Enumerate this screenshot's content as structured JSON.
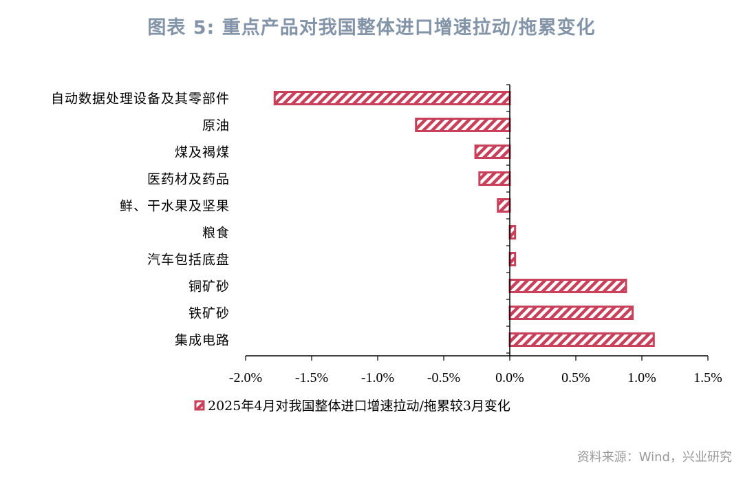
{
  "title": "图表 5:    重点产品对我国整体进口增速拉动/拖累变化",
  "source": "资料来源：Wind，兴业研究",
  "colors": {
    "bar": "#c8405a",
    "axis": "#000000",
    "title": "#8394a8",
    "source": "#9a9a9a"
  },
  "chart_data": {
    "type": "bar",
    "orientation": "horizontal",
    "categories": [
      "自动数据处理设备及其零部件",
      "原油",
      "煤及褐煤",
      "医药材及药品",
      "鲜、干水果及坚果",
      "粮食",
      "汽车包括底盘",
      "铜矿砂",
      "铁矿砂",
      "集成电路"
    ],
    "series": [
      {
        "name": "2025年4月对我国整体进口增速拉动/拖累较3月变化",
        "values": [
          -1.78,
          -0.71,
          -0.26,
          -0.23,
          -0.09,
          0.04,
          0.04,
          0.88,
          0.93,
          1.09
        ]
      }
    ],
    "xlim": [
      -2.0,
      1.5
    ],
    "xticks": [
      -2.0,
      -1.5,
      -1.0,
      -0.5,
      0.0,
      0.5,
      1.0,
      1.5
    ],
    "xtick_labels": [
      "-2.0%",
      "-1.5%",
      "-1.0%",
      "-0.5%",
      "0.0%",
      "0.5%",
      "1.0%",
      "1.5%"
    ],
    "xlabel": "",
    "ylabel": "",
    "grid": false,
    "legend": "bottom",
    "bar_pattern": "diagonal-hatch"
  }
}
